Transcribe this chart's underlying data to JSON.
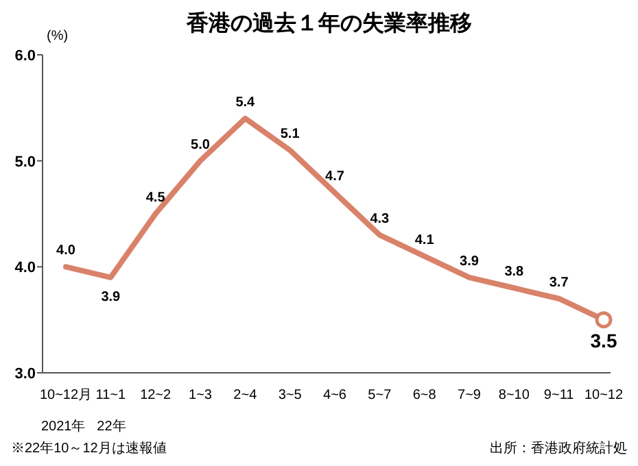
{
  "chart_data": {
    "type": "line",
    "title": "香港の過去１年の失業率推移",
    "ylabel": "(%)",
    "categories": [
      "10~12月",
      "11~1",
      "12~2",
      "1~3",
      "2~4",
      "3~5",
      "4~6",
      "5~7",
      "6~8",
      "7~9",
      "8~10",
      "9~11",
      "10~12"
    ],
    "series": [
      {
        "color": "#d9826a",
        "values": [
          4.0,
          3.9,
          4.5,
          5.0,
          5.4,
          5.1,
          4.7,
          4.3,
          4.1,
          3.9,
          3.8,
          3.7,
          3.5
        ],
        "value_labels": [
          "4.0",
          "3.9",
          "4.5",
          "5.0",
          "5.4",
          "5.1",
          "4.7",
          "4.3",
          "4.1",
          "3.9",
          "3.8",
          "3.7",
          "3.5"
        ]
      },
      {
        "type": "scatter",
        "color": "#d9826a",
        "marker": "circle",
        "values": [
          null,
          null,
          null,
          null,
          null,
          null,
          null,
          null,
          null,
          null,
          null,
          null,
          3.5
        ]
      }
    ],
    "ylim": [
      3,
      6
    ],
    "yticks": [
      {
        "value": 3,
        "label": "3.0"
      },
      {
        "value": 4,
        "label": "4.0"
      },
      {
        "value": 5,
        "label": "5.0"
      },
      {
        "value": 6,
        "label": "6.0"
      }
    ],
    "grid": false,
    "annotations": [
      "2021年",
      "22年",
      "※22年10～12月は速報値",
      "出所：香港政府統計処"
    ]
  }
}
